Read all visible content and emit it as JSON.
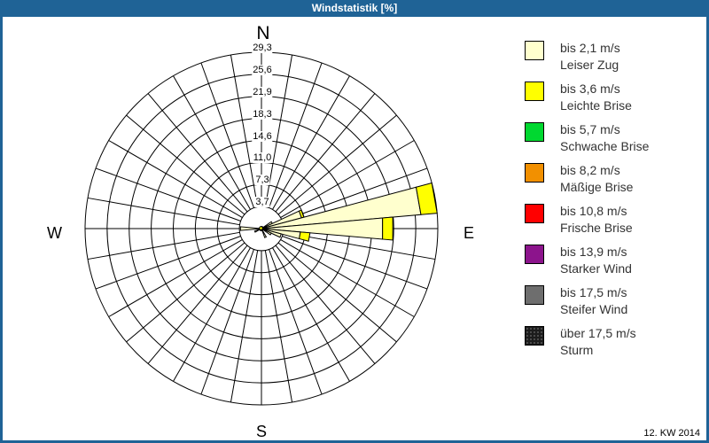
{
  "title": "Windstatistik [%]",
  "footer": "12. KW 2014",
  "compass": {
    "n": "N",
    "e": "E",
    "s": "S",
    "w": "W"
  },
  "colors": {
    "frame_blue": "#1F6396",
    "background": "#FFFFFF",
    "grid": "#000000"
  },
  "legend": {
    "position": "right",
    "items": [
      {
        "speed": "bis 2,1 m/s",
        "name": "Leiser Zug",
        "color": "#FFFFCE"
      },
      {
        "speed": "bis 3,6 m/s",
        "name": "Leichte Brise",
        "color": "#FFFF00"
      },
      {
        "speed": "bis 5,7 m/s",
        "name": "Schwache Brise",
        "color": "#00D830"
      },
      {
        "speed": "bis 8,2 m/s",
        "name": "Mäßige Brise",
        "color": "#F29000"
      },
      {
        "speed": "bis 10,8 m/s",
        "name": "Frische Brise",
        "color": "#FF0000"
      },
      {
        "speed": "bis 13,9 m/s",
        "name": "Starker Wind",
        "color": "#8C148C"
      },
      {
        "speed": "bis 17,5 m/s",
        "name": "Steifer Wind",
        "color": "#6E6E6E"
      },
      {
        "speed": "über 17,5 m/s",
        "name": "Sturm",
        "color": "#1C1C1C",
        "textured": true
      }
    ]
  },
  "chart_data": {
    "type": "windrose-bar",
    "title": "Windstatistik [%]",
    "unit": "%",
    "max": 29.3,
    "ring_values": [
      3.7,
      7.3,
      11.0,
      14.6,
      18.3,
      21.9,
      25.6,
      29.3
    ],
    "ring_labels": [
      "3,7",
      "7,3",
      "11,0",
      "14,6",
      "18,3",
      "21,9",
      "25,6",
      "29,3"
    ],
    "sector_width_deg": 10,
    "grid": {
      "rings": 8,
      "spoke_step_deg": 10
    },
    "center": [
      295,
      258
    ],
    "radius_px": 199,
    "classes_note": "segment order follows legend.items (bis 2,1 then bis 3,6)",
    "wedges": [
      {
        "azimuth_deg": 60,
        "values_pct": [
          2.0
        ]
      },
      {
        "azimuth_deg": 70,
        "values_pct": [
          6.9,
          0.4
        ]
      },
      {
        "azimuth_deg": 80,
        "values_pct": [
          26.6,
          2.7
        ]
      },
      {
        "azimuth_deg": 90,
        "values_pct": [
          20.2,
          1.7
        ]
      },
      {
        "azimuth_deg": 100,
        "values_pct": [
          6.5,
          1.6
        ]
      },
      {
        "azimuth_deg": 110,
        "values_pct": [
          3.4
        ]
      },
      {
        "azimuth_deg": 120,
        "values_pct": [
          1.8
        ]
      },
      {
        "azimuth_deg": 155,
        "values_pct": [
          1.6
        ]
      },
      {
        "azimuth_deg": 245,
        "values_pct": [
          1.2
        ]
      },
      {
        "azimuth_deg": 270,
        "values_pct": [
          3.5
        ]
      }
    ]
  }
}
